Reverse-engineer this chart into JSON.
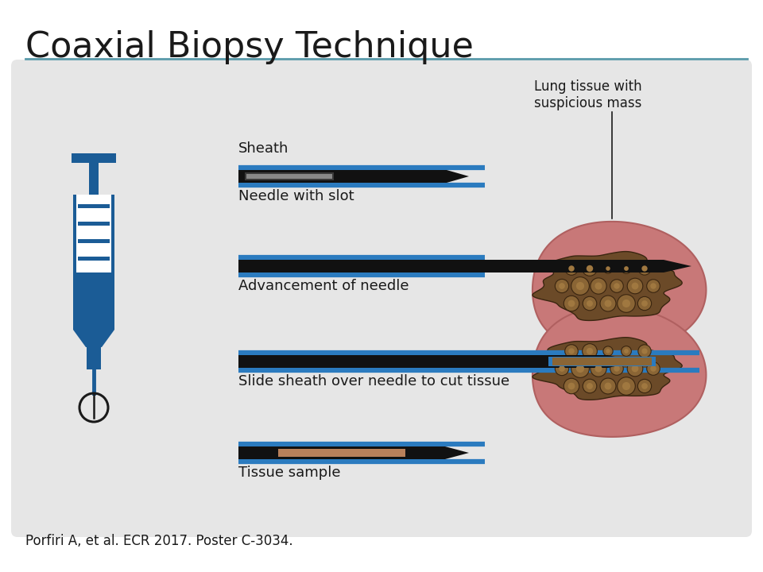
{
  "title": "Coaxial Biopsy Technique",
  "title_color": "#1a1a1a",
  "title_fontsize": 32,
  "separator_color": "#5a9aaa",
  "bg_color": "#ffffff",
  "panel_bg": "#e6e6e6",
  "syringe_color": "#1b5c96",
  "needle_black": "#111111",
  "needle_blue": "#2b7bbf",
  "tissue_color": "#c87878",
  "tissue_edge": "#b06060",
  "mass_dark": "#6b4a28",
  "mass_mid": "#8a6535",
  "mass_light": "#a07840",
  "sheath_label": "Sheath",
  "needle_label": "Needle with slot",
  "advance_label": "Advancement of needle",
  "slide_label": "Slide sheath over needle to cut tissue",
  "tissue_label": "Tissue sample",
  "lung_label": "Lung tissue with\nsuspicious mass",
  "citation": "Porfiri A, et al. ECR 2017. Poster C-3034.",
  "citation_fontsize": 12,
  "label_fontsize": 13
}
